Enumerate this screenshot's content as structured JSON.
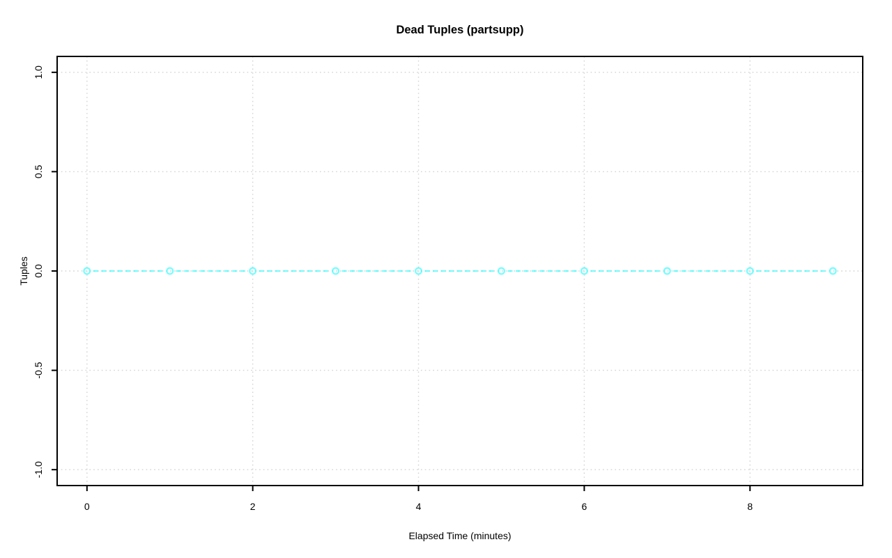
{
  "title": "Dead Tuples (partsupp)",
  "colors": {
    "background": "#FFFFFF",
    "axis": "#000000",
    "grid": "#D3D3D3",
    "series": "#00FFFF"
  },
  "chart_data": {
    "type": "line",
    "title": "Dead Tuples (partsupp)",
    "xlabel": "Elapsed Time (minutes)",
    "ylabel": "Tuples",
    "x": [
      0,
      1,
      2,
      3,
      4,
      5,
      6,
      7,
      8,
      9
    ],
    "series": [
      {
        "name": "dead-tuples",
        "values": [
          0,
          0,
          0,
          0,
          0,
          0,
          0,
          0,
          0,
          0
        ],
        "color": "#00FFFF",
        "marker": "open-circle",
        "line_style": "dashed"
      }
    ],
    "xticks": [
      0,
      2,
      4,
      6,
      8
    ],
    "xtick_labels": [
      "0",
      "2",
      "4",
      "6",
      "8"
    ],
    "yticks": [
      -1.0,
      -0.5,
      0.0,
      0.5,
      1.0
    ],
    "ytick_labels": [
      "-1.0",
      "-0.5",
      "0.0",
      "0.5",
      "1.0"
    ],
    "xlim": [
      -0.36,
      9.36
    ],
    "ylim": [
      -1.08,
      1.08
    ],
    "grid": true,
    "grid_style": "dotted",
    "frame": "box",
    "legend_position": "none"
  }
}
